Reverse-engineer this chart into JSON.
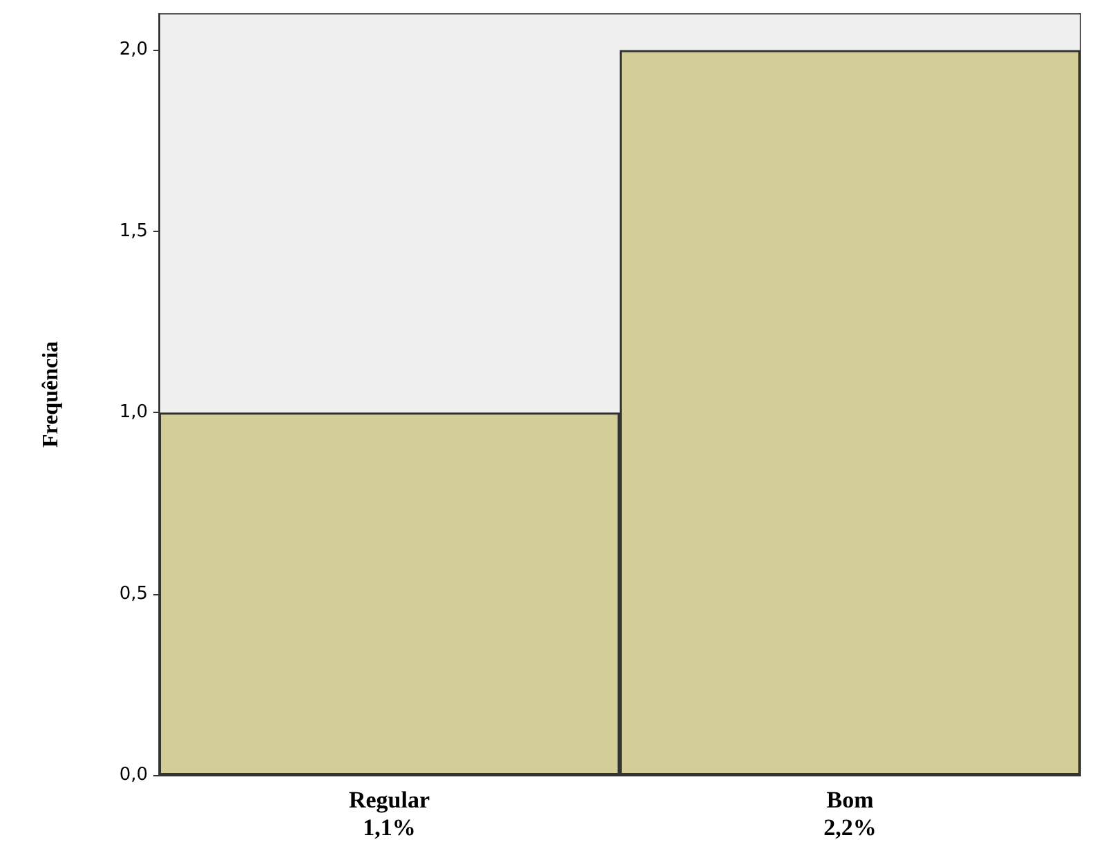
{
  "chart_data": {
    "type": "bar",
    "ylabel": "Frequência",
    "categories": [
      "Regular\n1,1%",
      "Bom\n2,2%"
    ],
    "values": [
      1,
      2
    ],
    "color": "#d3ce98",
    "ylim": [
      0,
      2.1
    ],
    "yticks": [
      {
        "value": 0,
        "label": "0,0"
      },
      {
        "value": 0.5,
        "label": "0,5"
      },
      {
        "value": 1,
        "label": "1,0"
      },
      {
        "value": 1.5,
        "label": "1,5"
      },
      {
        "value": 2,
        "label": "2,0"
      }
    ],
    "grid": false
  }
}
